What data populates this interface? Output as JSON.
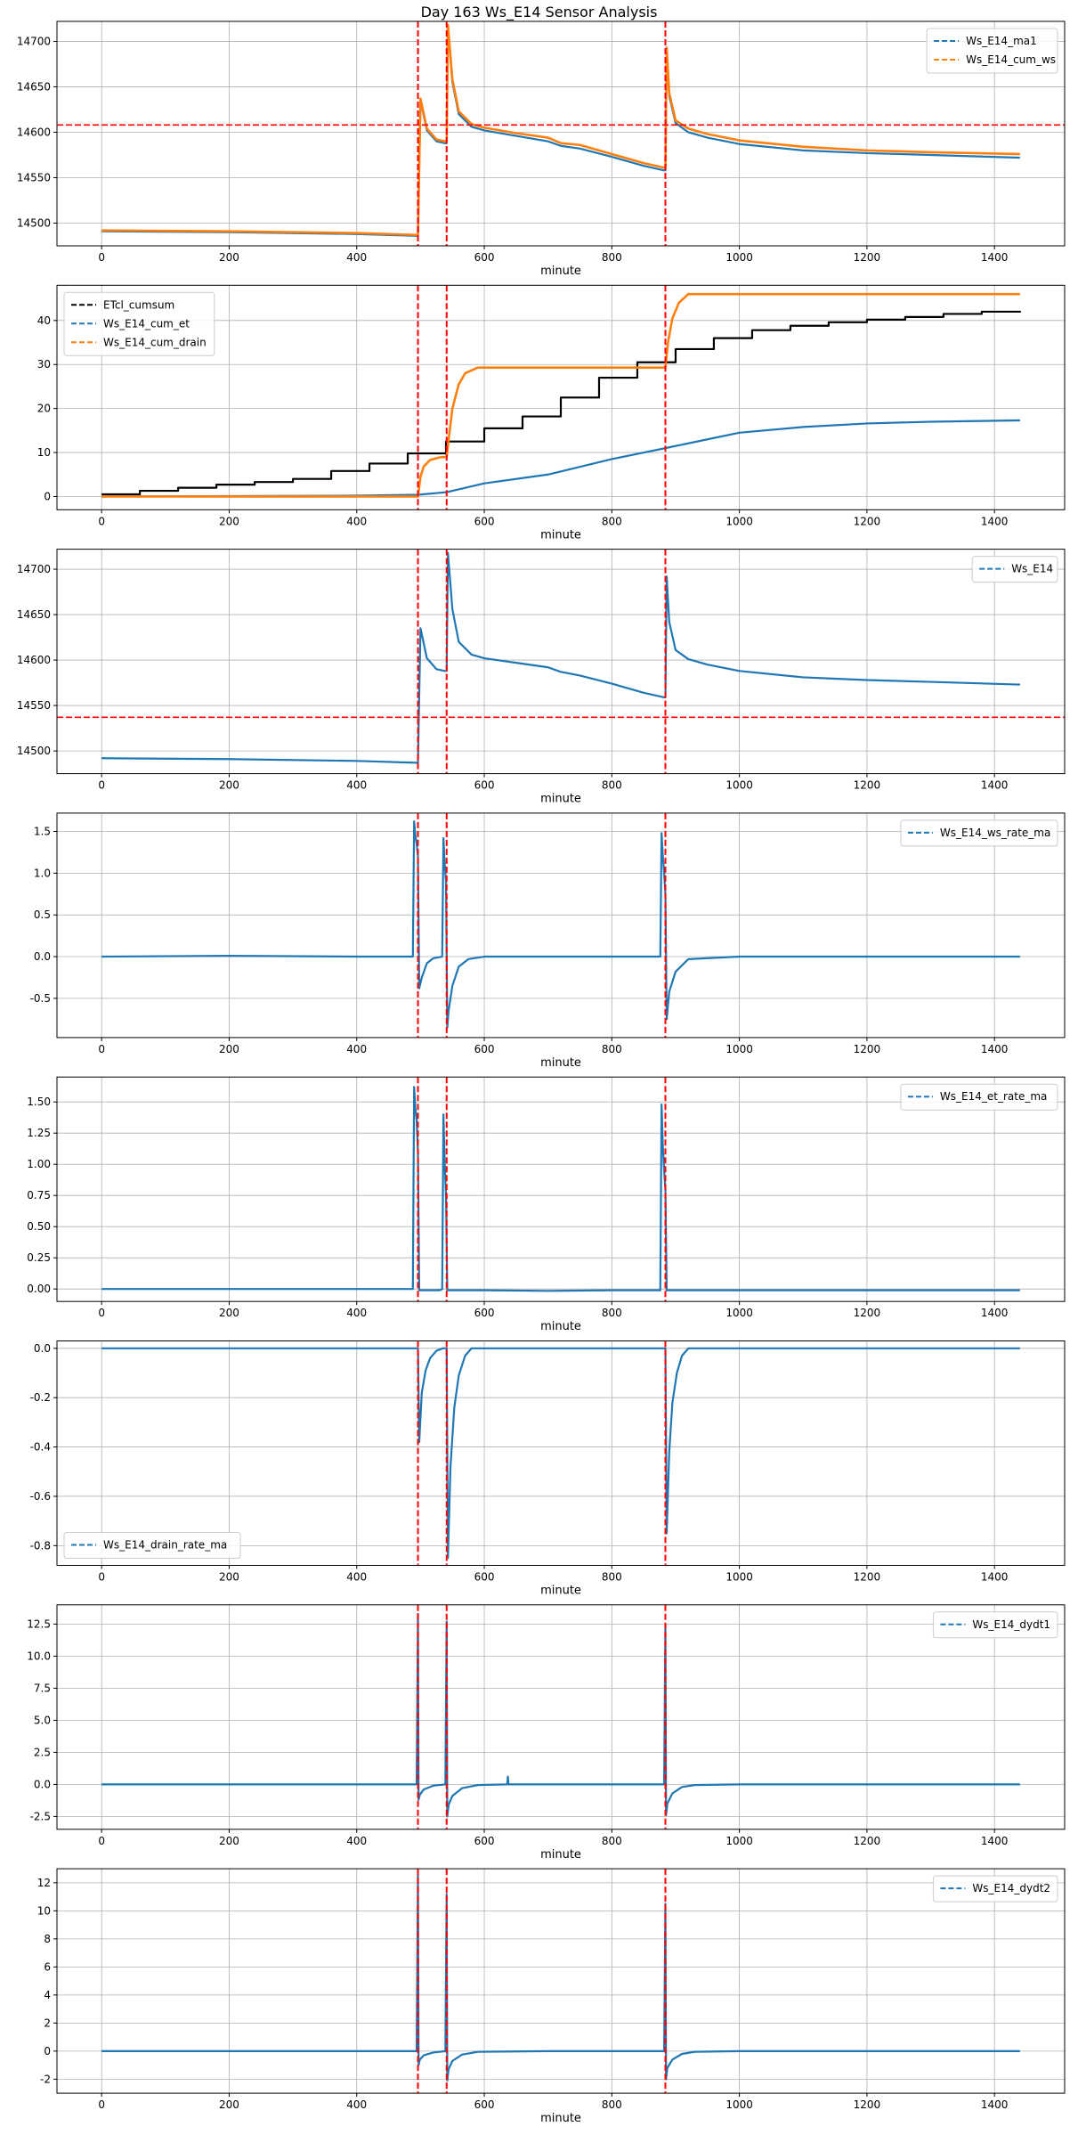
{
  "figure": {
    "title": "Day 163 Ws_E14 Sensor Analysis"
  },
  "colors": {
    "blue": "#1f77b4",
    "orange": "#ff7f0e",
    "black": "#000000",
    "red": "#ff0000",
    "grid": "#b0b0b0"
  },
  "chart_data": [
    {
      "type": "line",
      "xlabel": "minute",
      "xlim": [
        -70,
        1510
      ],
      "xticks": [
        0,
        200,
        400,
        600,
        800,
        1000,
        1200,
        1400
      ],
      "ylim": [
        14475,
        14722
      ],
      "yticks": [
        14500,
        14550,
        14600,
        14650,
        14700
      ],
      "ytick_labels": [
        "14500",
        "14550",
        "14600",
        "14650",
        "14700"
      ],
      "legend_loc": "upper right",
      "vlines": [
        496,
        541,
        884
      ],
      "hlines": [
        14608
      ],
      "series": [
        {
          "name": "Ws_E14_ma1",
          "color": "#1f77b4",
          "x": [
            0,
            200,
            400,
            494,
            496,
            500,
            510,
            525,
            538,
            541,
            543,
            550,
            560,
            580,
            600,
            650,
            700,
            720,
            750,
            800,
            850,
            882,
            884,
            886,
            890,
            900,
            920,
            950,
            1000,
            1100,
            1200,
            1300,
            1440
          ],
          "y": [
            14491,
            14490,
            14488,
            14486,
            14486,
            14635,
            14602,
            14590,
            14588,
            14588,
            14715,
            14655,
            14620,
            14606,
            14602,
            14596,
            14590,
            14585,
            14582,
            14573,
            14563,
            14558,
            14558,
            14690,
            14640,
            14610,
            14600,
            14594,
            14587,
            14580,
            14577,
            14575,
            14572
          ]
        },
        {
          "name": "Ws_E14_cum_ws",
          "color": "#ff7f0e",
          "x": [
            0,
            200,
            400,
            494,
            496,
            500,
            510,
            525,
            538,
            541,
            543,
            550,
            560,
            580,
            600,
            650,
            700,
            720,
            750,
            800,
            850,
            882,
            884,
            886,
            890,
            900,
            920,
            950,
            1000,
            1100,
            1200,
            1300,
            1440
          ],
          "y": [
            14492,
            14491,
            14489,
            14487,
            14487,
            14637,
            14604,
            14592,
            14590,
            14590,
            14718,
            14658,
            14623,
            14609,
            14605,
            14599,
            14594,
            14588,
            14586,
            14576,
            14566,
            14561,
            14561,
            14693,
            14643,
            14613,
            14604,
            14598,
            14591,
            14584,
            14580,
            14578,
            14576
          ]
        }
      ]
    },
    {
      "type": "line",
      "xlabel": "minute",
      "xlim": [
        -70,
        1510
      ],
      "xticks": [
        0,
        200,
        400,
        600,
        800,
        1000,
        1200,
        1400
      ],
      "ylim": [
        -3,
        48
      ],
      "yticks": [
        0,
        10,
        20,
        30,
        40
      ],
      "ytick_labels": [
        "0",
        "10",
        "20",
        "30",
        "40"
      ],
      "legend_loc": "upper left",
      "vlines": [
        496,
        541,
        884
      ],
      "hlines": [],
      "series": [
        {
          "name": "ETcl_cumsum",
          "color": "#000000",
          "step": true,
          "x": [
            0,
            60,
            120,
            180,
            240,
            300,
            360,
            420,
            480,
            540,
            600,
            660,
            720,
            780,
            840,
            900,
            960,
            1020,
            1080,
            1140,
            1200,
            1260,
            1320,
            1380,
            1440
          ],
          "y": [
            0.5,
            1.3,
            2.0,
            2.7,
            3.3,
            4.0,
            5.8,
            7.5,
            9.8,
            12.5,
            15.5,
            18.2,
            22.5,
            27.0,
            30.5,
            33.5,
            36.0,
            37.8,
            38.8,
            39.6,
            40.2,
            40.8,
            41.5,
            42.0,
            42.2
          ]
        },
        {
          "name": "Ws_E14_cum_et",
          "color": "#1f77b4",
          "x": [
            0,
            200,
            400,
            496,
            541,
            600,
            700,
            800,
            884,
            950,
            1000,
            1100,
            1200,
            1300,
            1440
          ],
          "y": [
            0,
            0.1,
            0.2,
            0.4,
            1.0,
            3.0,
            5.0,
            8.5,
            11.0,
            13.0,
            14.5,
            15.8,
            16.6,
            17.0,
            17.3
          ]
        },
        {
          "name": "Ws_E14_cum_drain",
          "color": "#ff7f0e",
          "x": [
            0,
            494,
            496,
            500,
            505,
            515,
            530,
            540,
            541,
            545,
            550,
            560,
            570,
            590,
            880,
            884,
            888,
            895,
            905,
            920,
            1440
          ],
          "y": [
            0,
            0,
            0,
            4.5,
            6.8,
            8.3,
            8.9,
            9.0,
            9.0,
            14,
            20,
            25.5,
            28,
            29.3,
            29.3,
            29.3,
            35,
            40.5,
            44,
            46,
            46
          ]
        }
      ]
    },
    {
      "type": "line",
      "xlabel": "minute",
      "xlim": [
        -70,
        1510
      ],
      "xticks": [
        0,
        200,
        400,
        600,
        800,
        1000,
        1200,
        1400
      ],
      "ylim": [
        14475,
        14722
      ],
      "yticks": [
        14500,
        14550,
        14600,
        14650,
        14700
      ],
      "ytick_labels": [
        "14500",
        "14550",
        "14600",
        "14650",
        "14700"
      ],
      "legend_loc": "upper right",
      "vlines": [
        496,
        541,
        884
      ],
      "hlines": [
        14537
      ],
      "series": [
        {
          "name": "Ws_E14",
          "color": "#1f77b4",
          "x": [
            0,
            200,
            400,
            494,
            496,
            500,
            510,
            525,
            538,
            541,
            543,
            550,
            560,
            580,
            600,
            650,
            700,
            720,
            750,
            800,
            850,
            882,
            884,
            886,
            890,
            900,
            920,
            950,
            1000,
            1100,
            1200,
            1300,
            1440
          ],
          "y": [
            14492,
            14491,
            14489,
            14487,
            14487,
            14635,
            14602,
            14590,
            14588,
            14588,
            14718,
            14656,
            14620,
            14606,
            14602,
            14597,
            14592,
            14587,
            14583,
            14574,
            14564,
            14559,
            14559,
            14692,
            14642,
            14611,
            14601,
            14595,
            14588,
            14581,
            14578,
            14576,
            14573
          ]
        }
      ]
    },
    {
      "type": "line",
      "xlabel": "minute",
      "xlim": [
        -70,
        1510
      ],
      "xticks": [
        0,
        200,
        400,
        600,
        800,
        1000,
        1200,
        1400
      ],
      "ylim": [
        -0.97,
        1.72
      ],
      "yticks": [
        -0.5,
        0.0,
        0.5,
        1.0,
        1.5
      ],
      "ytick_labels": [
        "-0.5",
        "0.0",
        "0.5",
        "1.0",
        "1.5"
      ],
      "legend_loc": "upper right",
      "vlines": [
        496,
        541,
        884
      ],
      "hlines": [],
      "series": [
        {
          "name": "Ws_E14_ws_rate_ma",
          "color": "#1f77b4",
          "x": [
            0,
            200,
            400,
            488,
            490,
            492,
            494,
            496,
            498,
            502,
            510,
            520,
            534,
            536,
            538,
            540,
            542,
            544,
            550,
            560,
            575,
            600,
            700,
            800,
            876,
            878,
            880,
            882,
            884,
            886,
            890,
            900,
            920,
            1000,
            1440
          ],
          "y": [
            0,
            0.01,
            0,
            0,
            1.62,
            1.45,
            1.35,
            1.2,
            -0.38,
            -0.25,
            -0.08,
            -0.02,
            0,
            1.42,
            1.1,
            0.9,
            -0.85,
            -0.65,
            -0.35,
            -0.12,
            -0.03,
            0,
            0,
            0,
            0,
            1.48,
            1.2,
            1.0,
            0.75,
            -0.75,
            -0.42,
            -0.18,
            -0.03,
            0,
            0
          ]
        }
      ]
    },
    {
      "type": "line",
      "xlabel": "minute",
      "xlim": [
        -70,
        1510
      ],
      "xticks": [
        0,
        200,
        400,
        600,
        800,
        1000,
        1200,
        1400
      ],
      "ylim": [
        -0.1,
        1.7
      ],
      "yticks": [
        0.0,
        0.25,
        0.5,
        0.75,
        1.0,
        1.25,
        1.5
      ],
      "ytick_labels": [
        "0.00",
        "0.25",
        "0.50",
        "0.75",
        "1.00",
        "1.25",
        "1.50"
      ],
      "legend_loc": "upper right",
      "vlines": [
        496,
        541,
        884
      ],
      "hlines": [],
      "series": [
        {
          "name": "Ws_E14_et_rate_ma",
          "color": "#1f77b4",
          "x": [
            0,
            200,
            400,
            488,
            490,
            492,
            494,
            496,
            498,
            530,
            534,
            536,
            538,
            540,
            542,
            600,
            700,
            800,
            876,
            878,
            880,
            882,
            884,
            886,
            1000,
            1440
          ],
          "y": [
            0,
            0,
            0,
            0,
            1.62,
            1.45,
            1.35,
            1.1,
            -0.01,
            -0.01,
            0,
            1.4,
            1.0,
            0.75,
            -0.01,
            -0.01,
            -0.015,
            -0.01,
            -0.01,
            1.48,
            1.15,
            0.95,
            0.8,
            -0.01,
            -0.01,
            -0.01
          ]
        }
      ]
    },
    {
      "type": "line",
      "xlabel": "minute",
      "xlim": [
        -70,
        1510
      ],
      "xticks": [
        0,
        200,
        400,
        600,
        800,
        1000,
        1200,
        1400
      ],
      "ylim": [
        -0.88,
        0.03
      ],
      "yticks": [
        -0.8,
        -0.6,
        -0.4,
        -0.2,
        0.0
      ],
      "ytick_labels": [
        "-0.8",
        "-0.6",
        "-0.4",
        "-0.2",
        "0.0"
      ],
      "legend_loc": "lower left",
      "vlines": [
        496,
        541,
        884
      ],
      "hlines": [],
      "series": [
        {
          "name": "Ws_E14_drain_rate_ma",
          "color": "#1f77b4",
          "x": [
            0,
            200,
            400,
            496,
            498,
            502,
            508,
            515,
            525,
            535,
            540,
            541,
            543,
            547,
            553,
            560,
            570,
            580,
            600,
            800,
            884,
            886,
            890,
            895,
            902,
            910,
            920,
            1000,
            1440
          ],
          "y": [
            0,
            0,
            0,
            0,
            -0.38,
            -0.18,
            -0.09,
            -0.04,
            -0.01,
            0,
            0,
            0,
            -0.85,
            -0.48,
            -0.24,
            -0.11,
            -0.03,
            0,
            0,
            0,
            0,
            -0.75,
            -0.42,
            -0.22,
            -0.1,
            -0.03,
            0,
            0,
            0
          ]
        }
      ]
    },
    {
      "type": "line",
      "xlabel": "minute",
      "xlim": [
        -70,
        1510
      ],
      "xticks": [
        0,
        200,
        400,
        600,
        800,
        1000,
        1200,
        1400
      ],
      "ylim": [
        -3.5,
        14.0
      ],
      "yticks": [
        -2.5,
        0.0,
        2.5,
        5.0,
        7.5,
        10.0,
        12.5
      ],
      "ytick_labels": [
        "-2.5",
        "0.0",
        "2.5",
        "5.0",
        "7.5",
        "10.0",
        "12.5"
      ],
      "legend_loc": "upper right",
      "vlines": [
        496,
        541,
        884
      ],
      "hlines": [],
      "series": [
        {
          "name": "Ws_E14_dydt1",
          "color": "#1f77b4",
          "x": [
            0,
            200,
            400,
            494,
            496,
            497,
            499,
            505,
            520,
            539,
            541,
            542,
            544,
            550,
            565,
            590,
            636,
            637,
            638,
            700,
            882,
            884,
            885,
            887,
            895,
            910,
            930,
            1000,
            1440
          ],
          "y": [
            0,
            0,
            0,
            0,
            13.3,
            -1.2,
            -0.8,
            -0.4,
            -0.1,
            0,
            12.7,
            -2.5,
            -1.6,
            -0.9,
            -0.3,
            -0.05,
            0,
            0.6,
            0,
            0,
            0,
            12.5,
            -2.4,
            -1.5,
            -0.7,
            -0.2,
            -0.05,
            0,
            0
          ]
        }
      ]
    },
    {
      "type": "line",
      "xlabel": "minute",
      "xlim": [
        -70,
        1510
      ],
      "xticks": [
        0,
        200,
        400,
        600,
        800,
        1000,
        1200,
        1400
      ],
      "ylim": [
        -3.0,
        13.0
      ],
      "yticks": [
        -2,
        0,
        2,
        4,
        6,
        8,
        10,
        12
      ],
      "ytick_labels": [
        "-2",
        "0",
        "2",
        "4",
        "6",
        "8",
        "10",
        "12"
      ],
      "legend_loc": "upper right",
      "vlines": [
        496,
        541,
        884
      ],
      "hlines": [],
      "series": [
        {
          "name": "Ws_E14_dydt2",
          "color": "#1f77b4",
          "x": [
            0,
            200,
            400,
            494,
            496,
            497,
            499,
            505,
            520,
            539,
            541,
            542,
            544,
            550,
            565,
            590,
            700,
            882,
            884,
            885,
            887,
            895,
            910,
            930,
            1000,
            1440
          ],
          "y": [
            0,
            0,
            0,
            0,
            12.6,
            -1.0,
            -0.6,
            -0.3,
            -0.1,
            0,
            11.2,
            -2.1,
            -1.3,
            -0.7,
            -0.25,
            -0.05,
            0,
            0,
            10.5,
            -2.0,
            -1.2,
            -0.6,
            -0.2,
            -0.05,
            0,
            0
          ]
        }
      ]
    }
  ]
}
